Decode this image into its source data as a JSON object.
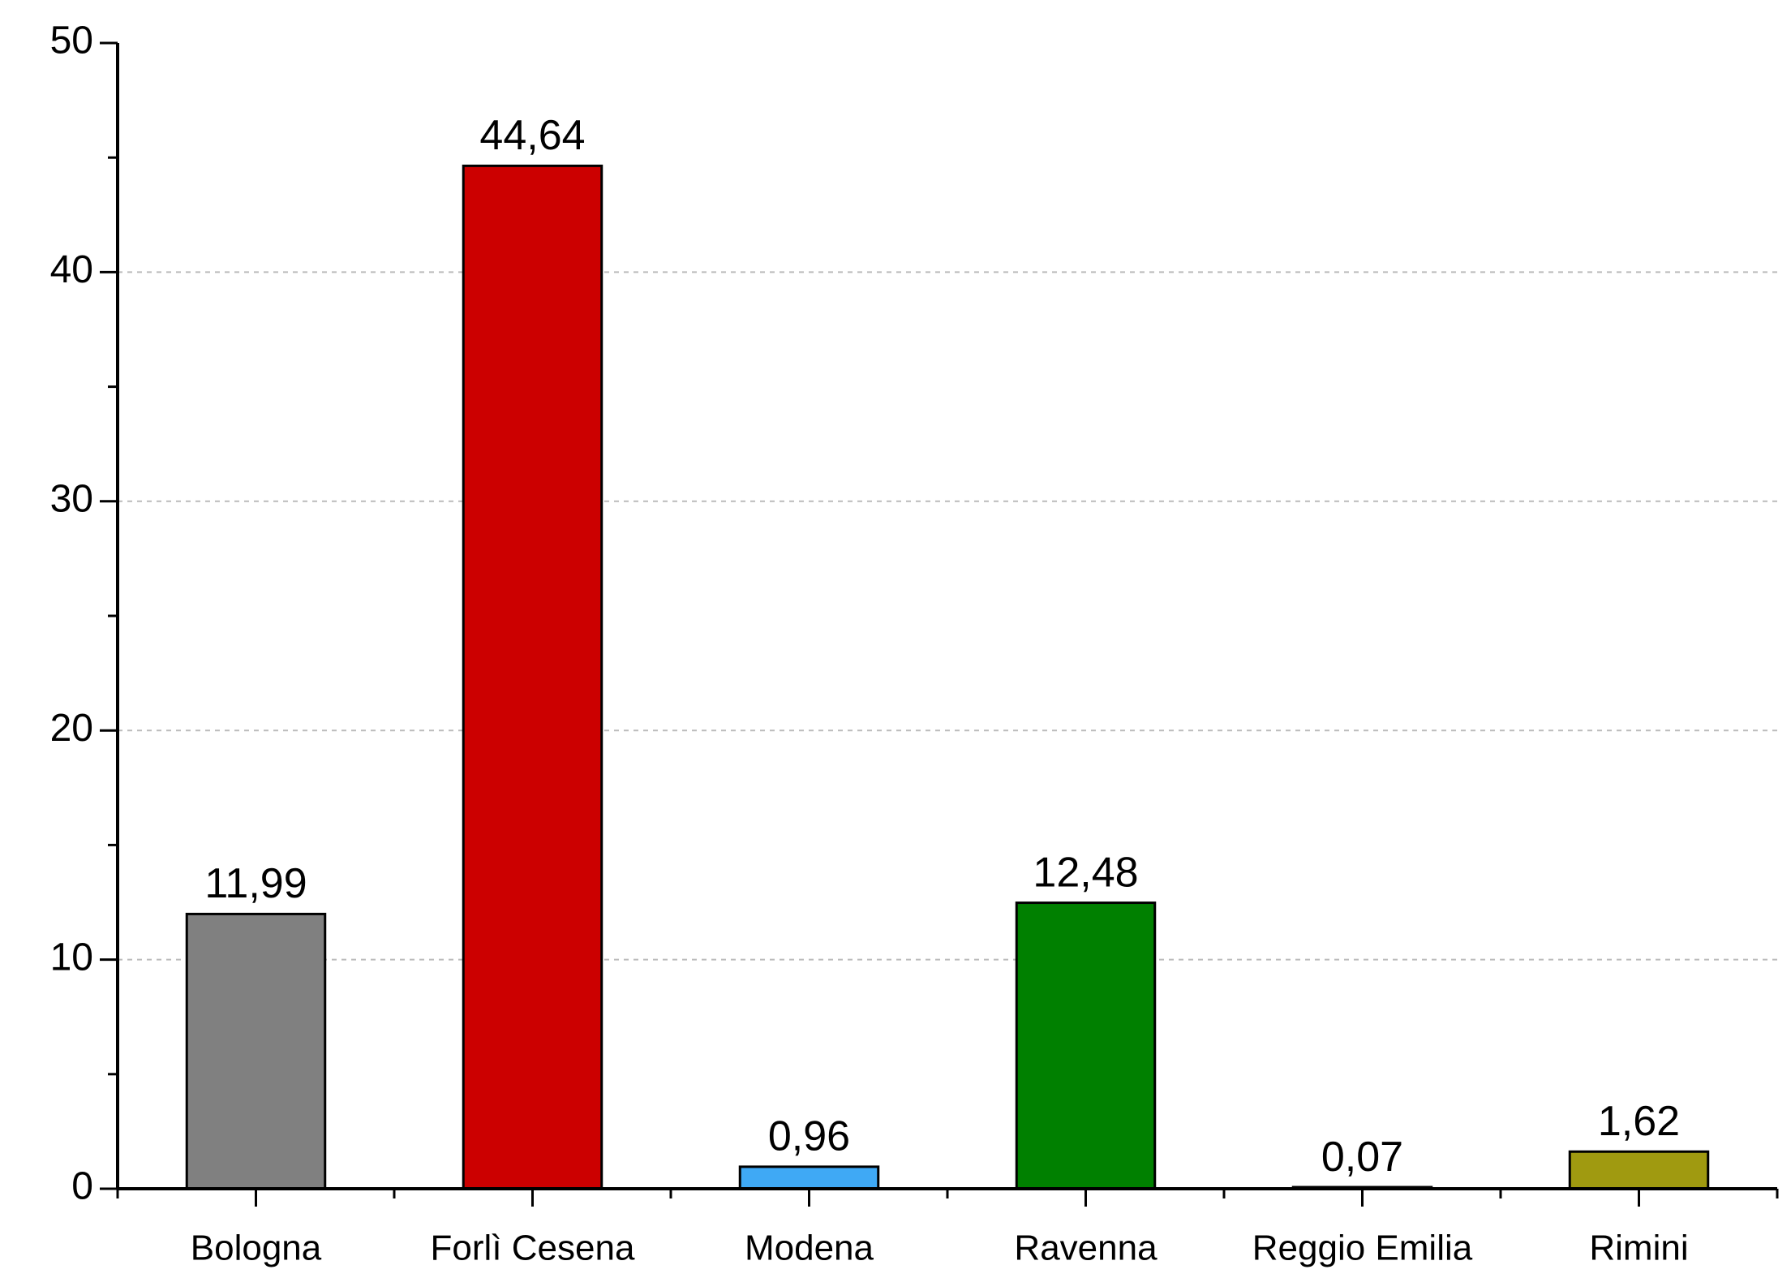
{
  "chart_data": {
    "type": "bar",
    "categories": [
      "Bologna",
      "Forlì Cesena",
      "Modena",
      "Ravenna",
      "Reggio Emilia",
      "Rimini"
    ],
    "values": [
      11.99,
      44.64,
      0.96,
      12.48,
      0.07,
      1.62
    ],
    "value_labels": [
      "11,99",
      "44,64",
      "0,96",
      "12,48",
      "0,07",
      "1,62"
    ],
    "colors": [
      "#808080",
      "#cc0000",
      "#3fa9f5",
      "#008000",
      "#d9d9d9",
      "#a09a10"
    ],
    "ylim": [
      0,
      50
    ],
    "yticks": [
      0,
      10,
      20,
      30,
      40,
      50
    ],
    "yminorticks": [
      5,
      15,
      25,
      35,
      45
    ],
    "grid": true
  }
}
